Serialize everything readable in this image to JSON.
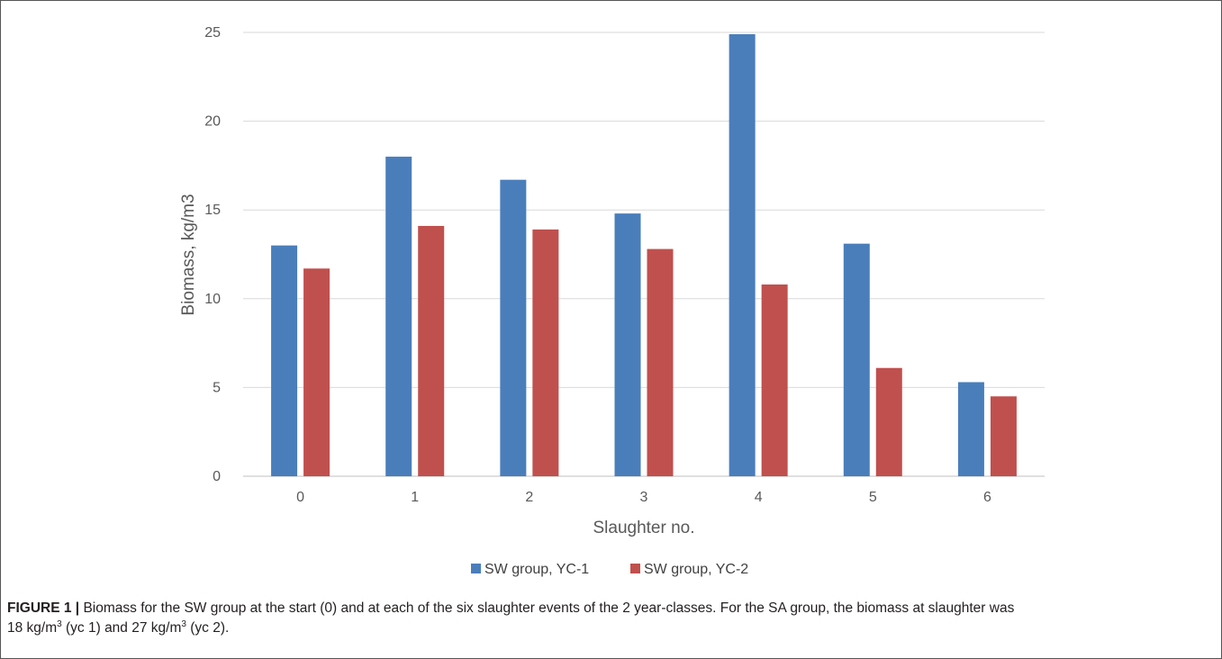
{
  "chart_data": {
    "type": "bar",
    "title": "",
    "xlabel": "Slaughter no.",
    "ylabel": "Biomass, kg/m3",
    "categories": [
      "0",
      "1",
      "2",
      "3",
      "4",
      "5",
      "6"
    ],
    "ylim": [
      0,
      25
    ],
    "yticks": [
      "0",
      "5",
      "10",
      "15",
      "20",
      "25"
    ],
    "grid": "horizontal",
    "legend_position": "bottom",
    "series": [
      {
        "name": "SW group, YC-1",
        "color": "#4a7ebb",
        "values": [
          13.0,
          18.0,
          16.7,
          14.8,
          24.9,
          13.1,
          5.3
        ]
      },
      {
        "name": "SW group, YC-2",
        "color": "#c0504d",
        "values": [
          11.7,
          14.1,
          13.9,
          12.8,
          10.8,
          6.1,
          4.5
        ]
      }
    ]
  },
  "caption": {
    "label": "FIGURE 1 |",
    "line1": "Biomass for the SW group at the start (0) and at each of the six slaughter events of the 2 year-classes. For the SA group, the biomass at slaughter was",
    "part_a": "18 kg/m",
    "sup_a": "3",
    "part_b": " (yc 1) and 27 kg/m",
    "sup_b": "3",
    "part_c": " (yc 2)."
  }
}
